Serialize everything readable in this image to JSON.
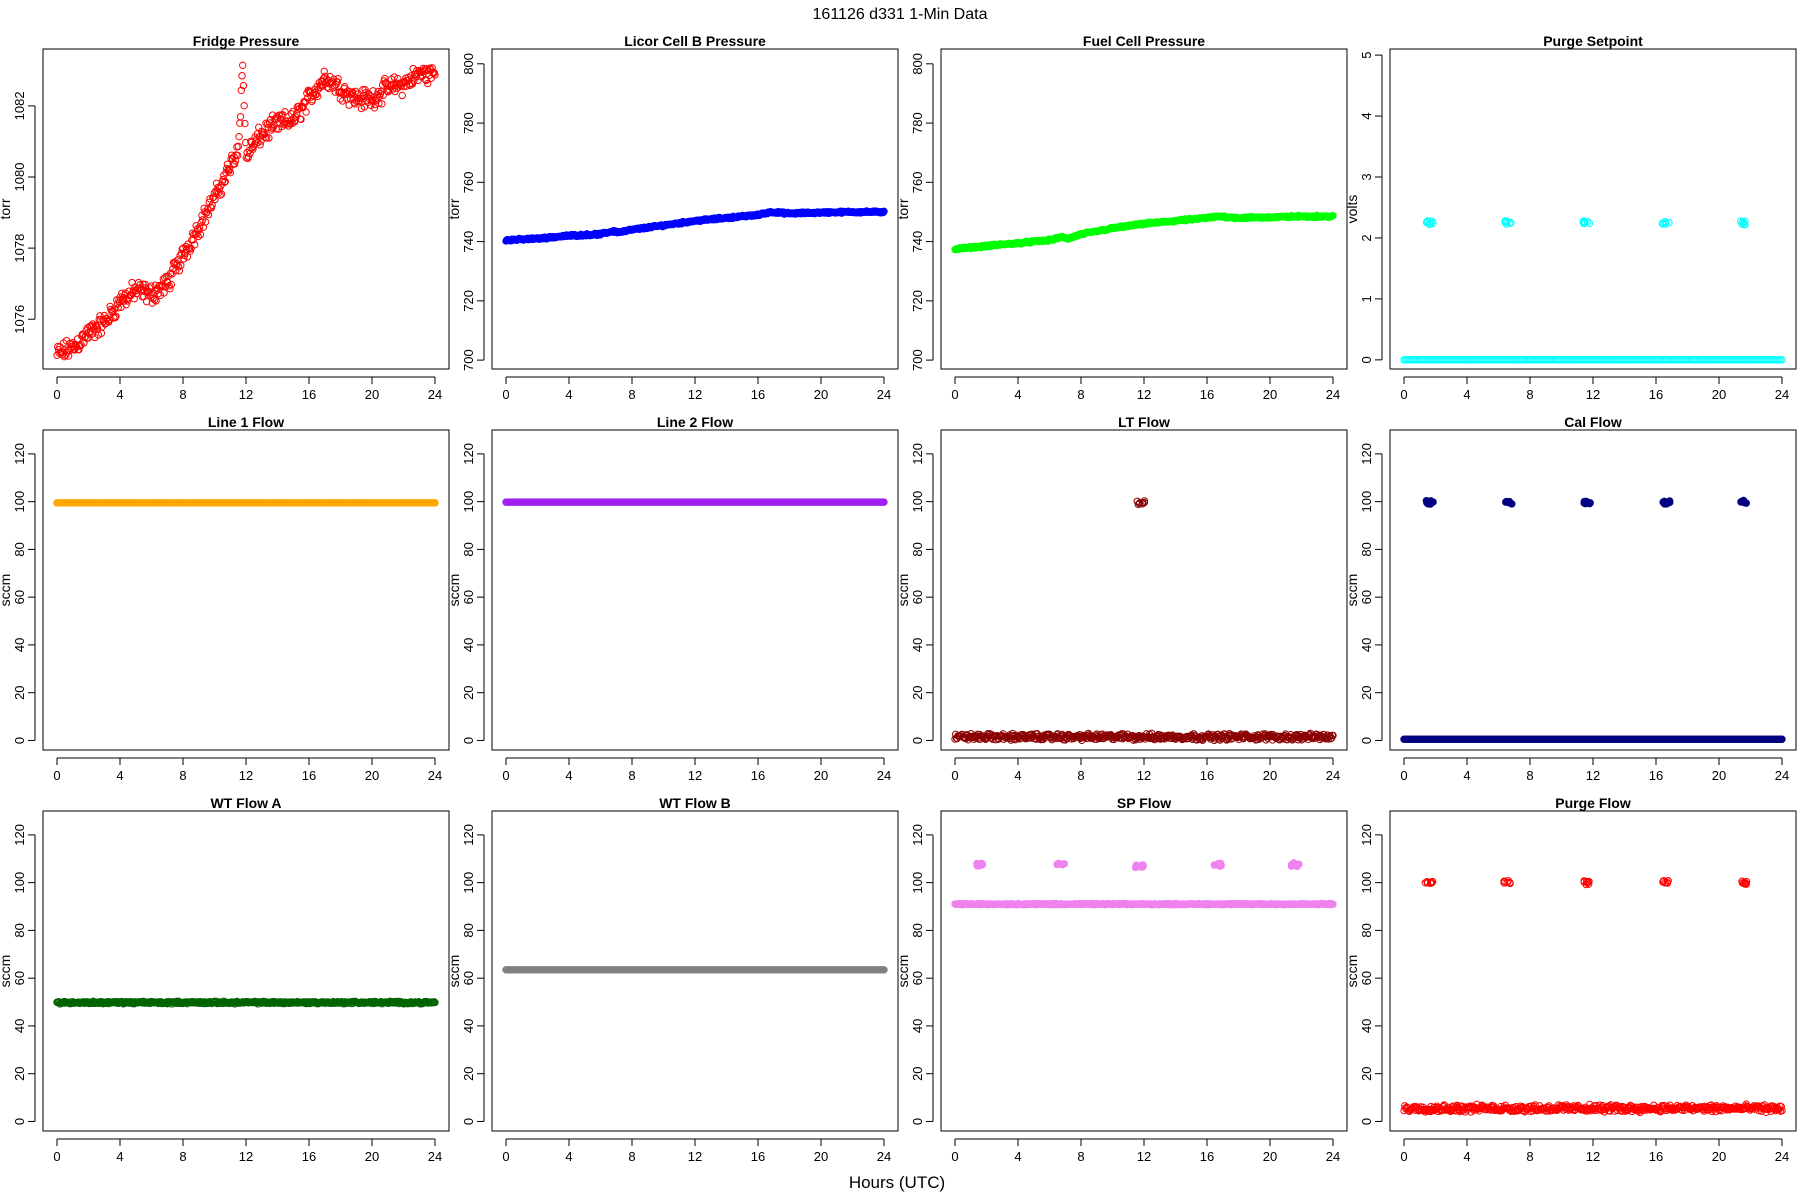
{
  "figure": {
    "title": "161126   d331   1-Min Data",
    "xlabel": "Hours (UTC)"
  },
  "chart_data": [
    {
      "type": "scatter",
      "title": "Fridge Pressure",
      "ylabel": "torr",
      "color": "#ff0000",
      "marker": "open-circle",
      "xlim": [
        0,
        24
      ],
      "ylim": [
        1074.6,
        1083.6
      ],
      "xticks": [
        0,
        4,
        8,
        12,
        16,
        20,
        24
      ],
      "yticks": [
        1076,
        1078,
        1080,
        1082
      ],
      "series": [
        {
          "x": [
            0,
            1,
            2,
            3,
            4,
            5,
            6,
            7,
            8,
            9,
            10,
            11,
            11.5,
            11.8,
            12,
            13,
            14,
            15,
            16,
            17,
            18,
            19,
            20,
            21,
            22,
            23,
            24
          ],
          "y": [
            1075,
            1075.2,
            1075.6,
            1075.9,
            1076.5,
            1076.8,
            1076.7,
            1077.0,
            1077.8,
            1078.6,
            1079.4,
            1080.3,
            1080.8,
            1083.1,
            1080.6,
            1081.2,
            1081.5,
            1081.6,
            1082.2,
            1082.8,
            1082.5,
            1082.2,
            1082.2,
            1082.5,
            1082.6,
            1082.9,
            1082.9
          ],
          "noise": 0.35
        }
      ]
    },
    {
      "type": "scatter",
      "title": "Licor Cell B Pressure",
      "ylabel": "torr",
      "color": "#0000ff",
      "marker": "filled-circle",
      "xlim": [
        0,
        24
      ],
      "ylim": [
        697,
        805
      ],
      "xticks": [
        0,
        4,
        8,
        12,
        16,
        20,
        24
      ],
      "yticks": [
        700,
        720,
        740,
        760,
        780,
        800
      ],
      "series": [
        {
          "x": [
            0,
            2,
            4,
            6,
            6.8,
            7.2,
            8,
            10,
            12,
            14,
            16,
            16.8,
            18,
            20,
            22,
            24
          ],
          "y": [
            740.5,
            741,
            742,
            742.5,
            743.5,
            743.2,
            744,
            745.5,
            747,
            748,
            749,
            750,
            749.5,
            749.8,
            750,
            750
          ],
          "noise": 0.4
        }
      ]
    },
    {
      "type": "scatter",
      "title": "Fuel Cell Pressure",
      "ylabel": "torr",
      "color": "#00ff00",
      "marker": "filled-circle",
      "xlim": [
        0,
        24
      ],
      "ylim": [
        697,
        805
      ],
      "xticks": [
        0,
        4,
        8,
        12,
        16,
        20,
        24
      ],
      "yticks": [
        700,
        720,
        740,
        760,
        780,
        800
      ],
      "series": [
        {
          "x": [
            0,
            2,
            4,
            6,
            6.8,
            7.2,
            8,
            10,
            12,
            14,
            16,
            16.8,
            18,
            20,
            22,
            24
          ],
          "y": [
            737.5,
            738.5,
            739.5,
            740.5,
            741.5,
            741,
            742.5,
            744.5,
            746,
            747,
            748,
            748.5,
            748,
            748.2,
            748.5,
            748.5
          ],
          "noise": 0.4
        }
      ]
    },
    {
      "type": "scatter",
      "title": "Purge Setpoint",
      "ylabel": "volts",
      "color": "#00ffff",
      "marker": "open-circle",
      "xlim": [
        0,
        24
      ],
      "ylim": [
        -0.15,
        5.1
      ],
      "xticks": [
        0,
        4,
        8,
        12,
        16,
        20,
        24
      ],
      "yticks": [
        0,
        1,
        2,
        3,
        4,
        5
      ],
      "series": [
        {
          "x": [
            0,
            24
          ],
          "y": [
            0,
            0
          ],
          "noise": 0
        },
        {
          "clusters": [
            {
              "x": 1.6,
              "y": 2.25
            },
            {
              "x": 6.6,
              "y": 2.25
            },
            {
              "x": 11.6,
              "y": 2.25
            },
            {
              "x": 16.6,
              "y": 2.25
            },
            {
              "x": 21.6,
              "y": 2.25
            }
          ]
        }
      ]
    },
    {
      "type": "scatter",
      "title": "Line 1 Flow",
      "ylabel": "sccm",
      "color": "#ffa500",
      "marker": "filled-circle",
      "xlim": [
        0,
        24
      ],
      "ylim": [
        -4,
        130
      ],
      "xticks": [
        0,
        4,
        8,
        12,
        16,
        20,
        24
      ],
      "yticks": [
        0,
        20,
        40,
        60,
        80,
        100,
        120
      ],
      "series": [
        {
          "x": [
            0,
            24
          ],
          "y": [
            99.5,
            99.5
          ],
          "noise": 0
        }
      ]
    },
    {
      "type": "scatter",
      "title": "Line 2 Flow",
      "ylabel": "sccm",
      "color": "#a020f0",
      "marker": "filled-circle",
      "xlim": [
        0,
        24
      ],
      "ylim": [
        -4,
        130
      ],
      "xticks": [
        0,
        4,
        8,
        12,
        16,
        20,
        24
      ],
      "yticks": [
        0,
        20,
        40,
        60,
        80,
        100,
        120
      ],
      "series": [
        {
          "x": [
            0,
            24
          ],
          "y": [
            99.8,
            99.8
          ],
          "noise": 0
        }
      ]
    },
    {
      "type": "scatter",
      "title": "LT Flow",
      "ylabel": "sccm",
      "color": "#8b0000",
      "marker": "open-circle",
      "xlim": [
        0,
        24
      ],
      "ylim": [
        -4,
        130
      ],
      "xticks": [
        0,
        4,
        8,
        12,
        16,
        20,
        24
      ],
      "yticks": [
        0,
        20,
        40,
        60,
        80,
        100,
        120
      ],
      "series": [
        {
          "x": [
            0,
            24
          ],
          "y": [
            1.5,
            1.5
          ],
          "noise": 1.6
        },
        {
          "clusters": [
            {
              "x": 11.8,
              "y": 99.5
            }
          ]
        }
      ]
    },
    {
      "type": "scatter",
      "title": "Cal Flow",
      "ylabel": "sccm",
      "color": "#000080",
      "marker": "filled-circle",
      "xlim": [
        0,
        24
      ],
      "ylim": [
        -4,
        130
      ],
      "xticks": [
        0,
        4,
        8,
        12,
        16,
        20,
        24
      ],
      "yticks": [
        0,
        20,
        40,
        60,
        80,
        100,
        120
      ],
      "series": [
        {
          "x": [
            0,
            24
          ],
          "y": [
            0.5,
            0.5
          ],
          "noise": 0
        },
        {
          "clusters": [
            {
              "x": 1.6,
              "y": 99.8
            },
            {
              "x": 6.7,
              "y": 99.8
            },
            {
              "x": 11.6,
              "y": 99.8
            },
            {
              "x": 16.7,
              "y": 99.8
            },
            {
              "x": 21.6,
              "y": 99.8
            }
          ]
        }
      ]
    },
    {
      "type": "scatter",
      "title": "WT Flow A",
      "ylabel": "sccm",
      "color": "#006400",
      "marker": "open-circle",
      "xlim": [
        0,
        24
      ],
      "ylim": [
        -4,
        130
      ],
      "xticks": [
        0,
        4,
        8,
        12,
        16,
        20,
        24
      ],
      "yticks": [
        0,
        20,
        40,
        60,
        80,
        100,
        120
      ],
      "series": [
        {
          "x": [
            0,
            24
          ],
          "y": [
            49.8,
            49.8
          ],
          "noise": 0.6
        }
      ]
    },
    {
      "type": "scatter",
      "title": "WT Flow B",
      "ylabel": "sccm",
      "color": "#808080",
      "marker": "filled-circle",
      "xlim": [
        0,
        24
      ],
      "ylim": [
        -4,
        130
      ],
      "xticks": [
        0,
        4,
        8,
        12,
        16,
        20,
        24
      ],
      "yticks": [
        0,
        20,
        40,
        60,
        80,
        100,
        120
      ],
      "series": [
        {
          "x": [
            0,
            24
          ],
          "y": [
            63.5,
            63.5
          ],
          "noise": 0
        }
      ]
    },
    {
      "type": "scatter",
      "title": "SP Flow",
      "ylabel": "sccm",
      "color": "#ee82ee",
      "marker": "filled-circle",
      "xlim": [
        0,
        24
      ],
      "ylim": [
        -4,
        130
      ],
      "xticks": [
        0,
        4,
        8,
        12,
        16,
        20,
        24
      ],
      "yticks": [
        0,
        20,
        40,
        60,
        80,
        100,
        120
      ],
      "series": [
        {
          "x": [
            0,
            24
          ],
          "y": [
            91,
            91
          ],
          "noise": 0.3
        },
        {
          "clusters": [
            {
              "x": 1.6,
              "y": 107.5
            },
            {
              "x": 6.7,
              "y": 107.5
            },
            {
              "x": 11.7,
              "y": 107
            },
            {
              "x": 16.7,
              "y": 107.5
            },
            {
              "x": 21.6,
              "y": 107.5
            }
          ]
        }
      ]
    },
    {
      "type": "scatter",
      "title": "Purge Flow",
      "ylabel": "sccm",
      "color": "#ff0000",
      "marker": "open-circle",
      "xlim": [
        0,
        24
      ],
      "ylim": [
        -4,
        130
      ],
      "xticks": [
        0,
        4,
        8,
        12,
        16,
        20,
        24
      ],
      "yticks": [
        0,
        20,
        40,
        60,
        80,
        100,
        120
      ],
      "series": [
        {
          "x": [
            0,
            24
          ],
          "y": [
            5.5,
            5.5
          ],
          "noise": 1.8
        },
        {
          "clusters": [
            {
              "x": 1.6,
              "y": 100
            },
            {
              "x": 6.6,
              "y": 100
            },
            {
              "x": 11.6,
              "y": 100
            },
            {
              "x": 16.6,
              "y": 100
            },
            {
              "x": 21.6,
              "y": 100
            }
          ]
        }
      ]
    }
  ]
}
